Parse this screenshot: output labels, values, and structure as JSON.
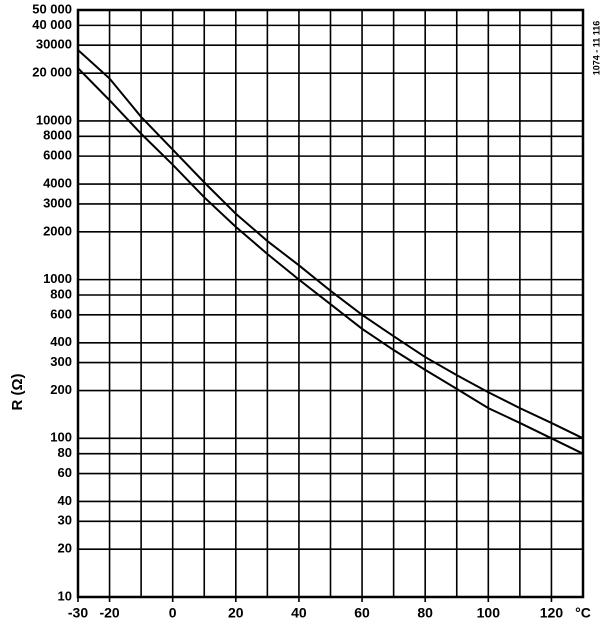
{
  "chart_data": {
    "type": "line",
    "y_label": "R (Ω)",
    "x_label": "°C",
    "side_note": "1074 - 11 116",
    "log_y": true,
    "grid": true,
    "x": [
      -30,
      -20,
      -10,
      0,
      10,
      20,
      30,
      40,
      50,
      60,
      70,
      80,
      90,
      100,
      110,
      120,
      130
    ],
    "series": [
      {
        "color": "#000000",
        "values": [
          28000,
          18500,
          10600,
          6600,
          4100,
          2600,
          1750,
          1230,
          850,
          600,
          440,
          325,
          250,
          195,
          155,
          125,
          100
        ]
      },
      {
        "color": "#000000",
        "values": [
          21500,
          13500,
          8300,
          5300,
          3300,
          2150,
          1450,
          1000,
          700,
          490,
          360,
          270,
          205,
          155,
          125,
          100,
          80
        ]
      }
    ],
    "xlim": [
      -30,
      130
    ],
    "xticks": [
      -30,
      -20,
      0,
      20,
      40,
      60,
      80,
      100,
      120
    ],
    "ylim": [
      10,
      50000
    ],
    "yticks": [
      10,
      20,
      30,
      40,
      60,
      80,
      100,
      200,
      300,
      400,
      600,
      800,
      1000,
      2000,
      3000,
      4000,
      6000,
      8000,
      10000,
      {
        "value": 20000,
        "label": "20 000"
      },
      30000,
      {
        "value": 40000,
        "label": "40 000"
      },
      {
        "value": 50000,
        "label": "50 000"
      }
    ]
  }
}
